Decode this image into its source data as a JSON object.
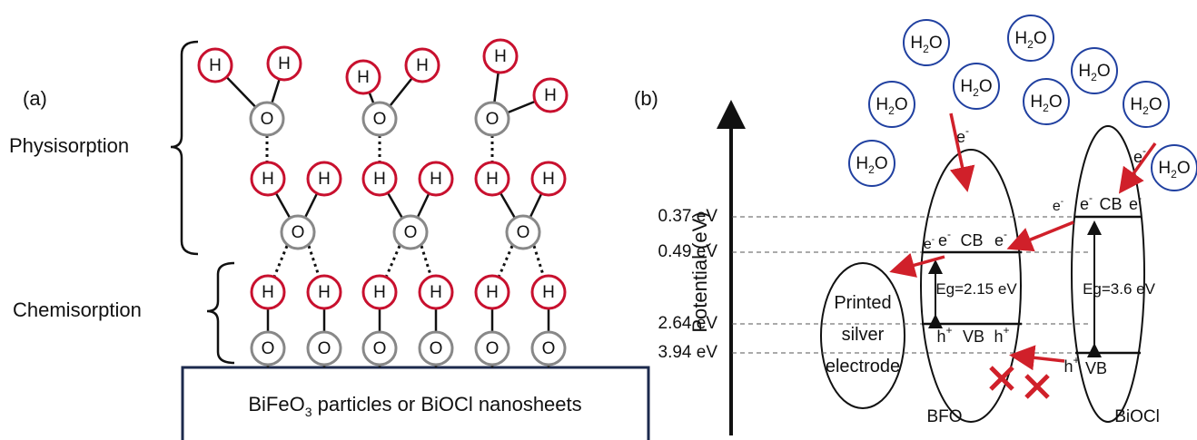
{
  "panel_a": {
    "label": "(a)",
    "physisorption": "Physisorption",
    "chemisorption": "Chemisorption",
    "atoms": {
      "hydrogen": "H",
      "oxygen": "O"
    },
    "substrate": {
      "prefix": "BiFeO",
      "subscript": "3",
      "suffix": " particles or BiOCl nanosheets"
    }
  },
  "panel_b": {
    "label": "(b)",
    "axis_label": "Potential (eV)",
    "levels": [
      "0.37 eV",
      "0.49 eV",
      "2.64 eV",
      "3.94 eV"
    ],
    "water": {
      "base": "H",
      "subscript": "2",
      "end": "O"
    },
    "electron": {
      "symbol": "e",
      "charge": "-"
    },
    "hole": {
      "symbol": "h",
      "charge": "+"
    },
    "electrode": [
      "Printed",
      "silver",
      "electrode"
    ],
    "bfo": {
      "name": "BFO",
      "cb": "CB",
      "vb": "VB",
      "gap": "Eg=2.15 eV"
    },
    "biocl": {
      "name": "BiOCl",
      "cb": "CB",
      "vb": "VB",
      "gap": "Eg=3.6 eV"
    }
  }
}
